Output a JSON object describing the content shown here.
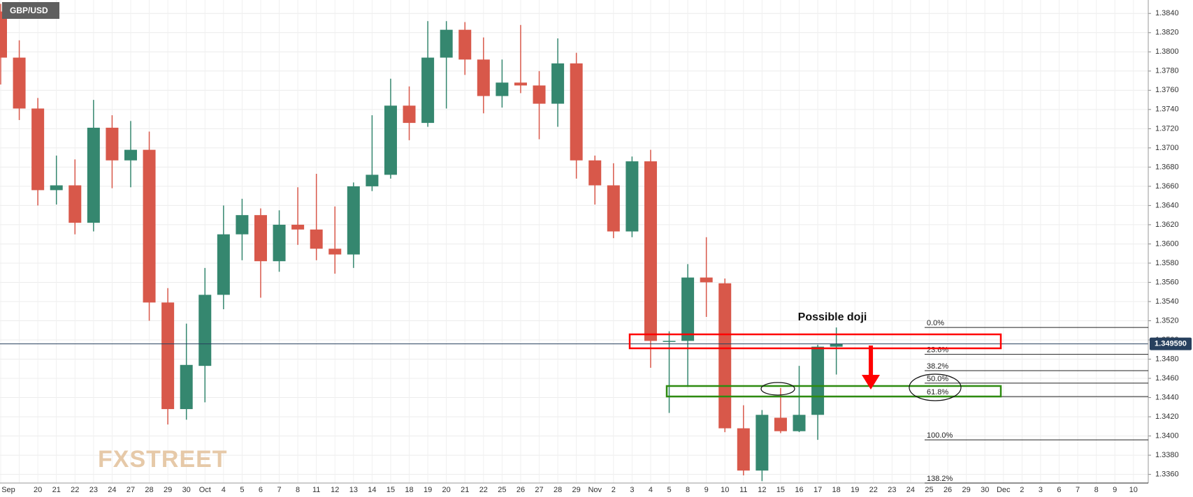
{
  "chart_data": {
    "type": "candlestick",
    "title": "GBP/USD",
    "watermark": "FXSTREET",
    "annotation": "Possible doji",
    "categories": [
      "Sep",
      null,
      "20",
      "21",
      "22",
      "23",
      "24",
      "27",
      "28",
      "29",
      "30",
      "Oct",
      "4",
      "5",
      "6",
      "7",
      "8",
      "11",
      "12",
      "13",
      "14",
      "15",
      "18",
      "19",
      "20",
      "21",
      "22",
      "25",
      "26",
      "27",
      "28",
      "29",
      "Nov",
      "2",
      "3",
      "4",
      "5",
      "8",
      "9",
      "10",
      "11",
      "12",
      "15",
      "16",
      "17",
      "18",
      "19",
      "22",
      "23",
      "24",
      "25",
      "26",
      "29",
      "30",
      "Dec",
      "2",
      "3",
      "6",
      "7",
      "8",
      "9",
      "10"
    ],
    "open": [
      1.3842,
      1.3794,
      1.3741,
      1.3656,
      1.3661,
      1.3622,
      1.3721,
      1.3687,
      1.3698,
      1.3539,
      1.3428,
      1.3473,
      1.3547,
      1.361,
      1.363,
      1.3582,
      1.362,
      1.3615,
      1.3595,
      1.3589,
      1.366,
      1.3672,
      1.3744,
      1.3726,
      1.3794,
      1.3823,
      1.3792,
      1.3754,
      1.3768,
      1.3765,
      1.3746,
      1.3788,
      1.3687,
      1.3661,
      1.3613,
      1.3686,
      1.3498,
      1.3499,
      1.3565,
      1.3559,
      1.3408,
      1.3364,
      1.3419,
      1.3405,
      1.3422,
      1.3493,
      null,
      null,
      null,
      null,
      null,
      null,
      null,
      null,
      null,
      null,
      null,
      null,
      null,
      null,
      null,
      null
    ],
    "high": [
      1.385,
      1.3812,
      1.3752,
      1.3692,
      1.3688,
      1.375,
      1.3734,
      1.3728,
      1.3717,
      1.3554,
      1.3517,
      1.3575,
      1.364,
      1.3647,
      1.3637,
      1.3635,
      1.3659,
      1.3673,
      1.3639,
      1.3664,
      1.3734,
      1.3772,
      1.3764,
      1.3832,
      1.3832,
      1.3831,
      1.3815,
      1.3792,
      1.3828,
      1.378,
      1.3814,
      1.3799,
      1.3692,
      1.3684,
      1.3691,
      1.3698,
      1.3509,
      1.3579,
      1.3607,
      1.3564,
      1.3432,
      1.3427,
      1.345,
      1.3473,
      1.3495,
      1.3513,
      null,
      null,
      null,
      null,
      null,
      null,
      null,
      null,
      null,
      null,
      null,
      null,
      null,
      null,
      null,
      null
    ],
    "low": [
      1.3766,
      1.3729,
      1.364,
      1.3641,
      1.361,
      1.3613,
      1.3658,
      1.3659,
      1.352,
      1.3412,
      1.3417,
      1.3435,
      1.3532,
      1.3583,
      1.3544,
      1.3571,
      1.3599,
      1.3583,
      1.3569,
      1.3575,
      1.3655,
      1.3668,
      1.3708,
      1.3722,
      1.3741,
      1.3776,
      1.3736,
      1.3742,
      1.3757,
      1.3709,
      1.3722,
      1.3668,
      1.3641,
      1.3606,
      1.3607,
      1.3471,
      1.3424,
      1.3451,
      1.3524,
      1.3404,
      1.3359,
      1.3353,
      1.3403,
      1.3404,
      1.3396,
      1.3464,
      null,
      null,
      null,
      null,
      null,
      null,
      null,
      null,
      null,
      null,
      null,
      null,
      null,
      null,
      null,
      null
    ],
    "close": [
      1.3794,
      1.3741,
      1.3656,
      1.3661,
      1.3622,
      1.3721,
      1.3687,
      1.3698,
      1.3539,
      1.3428,
      1.3474,
      1.3547,
      1.361,
      1.363,
      1.3582,
      1.362,
      1.3615,
      1.3595,
      1.3589,
      1.366,
      1.3672,
      1.3744,
      1.3726,
      1.3794,
      1.3823,
      1.3792,
      1.3754,
      1.3768,
      1.3765,
      1.3746,
      1.3788,
      1.3687,
      1.3661,
      1.3613,
      1.3686,
      1.3499,
      1.3499,
      1.3565,
      1.356,
      1.3408,
      1.3364,
      1.3422,
      1.3405,
      1.3422,
      1.3493,
      1.3496,
      null,
      null,
      null,
      null,
      null,
      null,
      null,
      null,
      null,
      null,
      null,
      null,
      null,
      null,
      null,
      null
    ],
    "up_color": "#35876f",
    "down_color": "#d8584a",
    "ylim": [
      1.3351,
      1.3854
    ],
    "yticks": [
      {
        "value": 1.336,
        "label": "1.3360"
      },
      {
        "value": 1.338,
        "label": "1.3380"
      },
      {
        "value": 1.34,
        "label": "1.3400"
      },
      {
        "value": 1.342,
        "label": "1.3420"
      },
      {
        "value": 1.344,
        "label": "1.3440"
      },
      {
        "value": 1.346,
        "label": "1.3460"
      },
      {
        "value": 1.348,
        "label": "1.3480"
      },
      {
        "value": 1.35,
        "label": "1.3500"
      },
      {
        "value": 1.352,
        "label": "1.3520"
      },
      {
        "value": 1.354,
        "label": "1.3540"
      },
      {
        "value": 1.356,
        "label": "1.3560"
      },
      {
        "value": 1.358,
        "label": "1.3580"
      },
      {
        "value": 1.36,
        "label": "1.3600"
      },
      {
        "value": 1.362,
        "label": "1.3620"
      },
      {
        "value": 1.364,
        "label": "1.3640"
      },
      {
        "value": 1.366,
        "label": "1.3660"
      },
      {
        "value": 1.368,
        "label": "1.3680"
      },
      {
        "value": 1.37,
        "label": "1.3700"
      },
      {
        "value": 1.372,
        "label": "1.3720"
      },
      {
        "value": 1.374,
        "label": "1.3740"
      },
      {
        "value": 1.376,
        "label": "1.3760"
      },
      {
        "value": 1.378,
        "label": "1.3780"
      },
      {
        "value": 1.38,
        "label": "1.3800"
      },
      {
        "value": 1.382,
        "label": "1.3820"
      },
      {
        "value": 1.384,
        "label": "1.3840"
      }
    ],
    "grid": true,
    "current_price": {
      "value": 1.34959,
      "label": "1.349590"
    },
    "fib_levels": [
      {
        "label": "0.0%",
        "value": 1.3513
      },
      {
        "label": "23.6%",
        "value": 1.3485
      },
      {
        "label": "38.2%",
        "value": 1.3468
      },
      {
        "label": "50.0%",
        "value": 1.3455
      },
      {
        "label": "61.8%",
        "value": 1.3441
      },
      {
        "label": "100.0%",
        "value": 1.3396
      },
      {
        "label": "138.2%",
        "value": 1.3351
      }
    ]
  }
}
